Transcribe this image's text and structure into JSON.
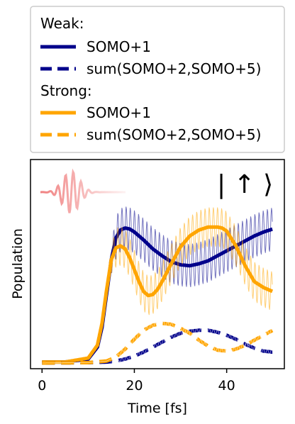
{
  "chart_data": {
    "type": "line",
    "xlabel": "Time [fs]",
    "ylabel": "Population",
    "xlim": [
      -2.5,
      52.5
    ],
    "ylim": [
      0,
      1
    ],
    "xticks": [
      0,
      20,
      40
    ],
    "xtick_labels": [
      "0",
      "20",
      "40"
    ],
    "annotation": "| ↑ ⟩",
    "legend": {
      "placement": "above plot",
      "groups": [
        {
          "title": "Weak:",
          "entries": [
            {
              "label": "SOMO+1",
              "color": "#00008b",
              "style": "solid"
            },
            {
              "label": "sum(SOMO+2,SOMO+5)",
              "color": "#00008b",
              "style": "dashed"
            }
          ]
        },
        {
          "title": "Strong:",
          "entries": [
            {
              "label": "SOMO+1",
              "color": "#ffa500",
              "style": "solid"
            },
            {
              "label": "sum(SOMO+2,SOMO+5)",
              "color": "#ffa500",
              "style": "dashed"
            }
          ]
        }
      ]
    },
    "series": [
      {
        "group": "Weak",
        "label": "SOMO+1",
        "color": "#00008b",
        "style": "solid",
        "x": [
          0,
          5,
          10,
          12,
          13,
          14,
          15,
          16,
          17,
          18,
          19,
          20,
          22,
          24,
          26,
          28,
          30,
          32,
          34,
          36,
          38,
          40,
          42,
          44,
          46,
          48,
          50
        ],
        "y": [
          0.005,
          0.005,
          0.02,
          0.08,
          0.18,
          0.35,
          0.52,
          0.63,
          0.67,
          0.68,
          0.675,
          0.66,
          0.62,
          0.575,
          0.54,
          0.51,
          0.495,
          0.49,
          0.5,
          0.515,
          0.54,
          0.565,
          0.59,
          0.615,
          0.64,
          0.66,
          0.675
        ]
      },
      {
        "group": "Weak",
        "label": "sum(SOMO+2,SOMO+5)",
        "color": "#00008b",
        "style": "dashed",
        "x": [
          0,
          10,
          14,
          16,
          18,
          20,
          22,
          24,
          26,
          28,
          30,
          32,
          34,
          36,
          38,
          40,
          42,
          44,
          46,
          48,
          50
        ],
        "y": [
          0.0,
          0.002,
          0.005,
          0.01,
          0.02,
          0.035,
          0.055,
          0.08,
          0.105,
          0.13,
          0.15,
          0.16,
          0.165,
          0.165,
          0.155,
          0.14,
          0.12,
          0.095,
          0.075,
          0.06,
          0.055
        ]
      },
      {
        "group": "Strong",
        "label": "SOMO+1",
        "color": "#ffa500",
        "style": "solid",
        "x": [
          0,
          5,
          10,
          12,
          13,
          14,
          15,
          16,
          17,
          18,
          19,
          20,
          21,
          22,
          23,
          24,
          25,
          26,
          28,
          30,
          32,
          34,
          36,
          38,
          39,
          40,
          42,
          44,
          46,
          48,
          50
        ],
        "y": [
          0.005,
          0.005,
          0.025,
          0.09,
          0.2,
          0.37,
          0.52,
          0.58,
          0.59,
          0.575,
          0.53,
          0.47,
          0.41,
          0.36,
          0.34,
          0.345,
          0.37,
          0.41,
          0.5,
          0.585,
          0.64,
          0.67,
          0.685,
          0.685,
          0.68,
          0.665,
          0.59,
          0.49,
          0.41,
          0.38,
          0.36
        ]
      },
      {
        "group": "Strong",
        "label": "sum(SOMO+2,SOMO+5)",
        "color": "#ffa500",
        "style": "dashed",
        "x": [
          0,
          10,
          14,
          16,
          18,
          20,
          22,
          24,
          26,
          28,
          30,
          32,
          34,
          36,
          38,
          40,
          42,
          44,
          46,
          48,
          50
        ],
        "y": [
          0.0,
          0.002,
          0.01,
          0.03,
          0.07,
          0.12,
          0.165,
          0.19,
          0.2,
          0.195,
          0.175,
          0.15,
          0.115,
          0.085,
          0.065,
          0.06,
          0.07,
          0.09,
          0.115,
          0.14,
          0.165
        ]
      }
    ],
    "pulse_inset": {
      "color": "#f08080",
      "description_shape": "laser pulse waveform"
    }
  }
}
